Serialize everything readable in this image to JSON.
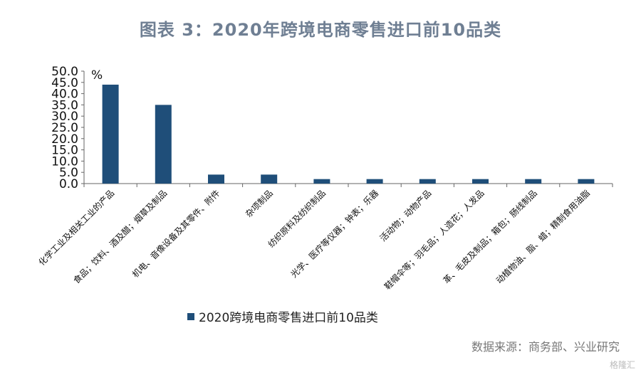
{
  "chart_data": {
    "type": "bar",
    "title": "图表 3：2020年跨境电商零售进口前10品类",
    "ylabel": "%",
    "ylim": [
      0,
      50
    ],
    "yticks": [
      "0.0",
      "5.0",
      "10.0",
      "15.0",
      "20.0",
      "25.0",
      "30.0",
      "35.0",
      "40.0",
      "45.0",
      "50.0"
    ],
    "categories": [
      "化学工业及相关工业的产品",
      "食品；饮料、酒及醋；烟草及制品",
      "机电、音像设备及其零件、附件",
      "杂项制品",
      "纺织原料及纺织制品",
      "光学、医疗等仪器；钟表；乐器",
      "活动物；动物产品",
      "鞋帽伞等；羽毛品；人造花；人发品",
      "革、毛皮及制品；箱包；肠线制品",
      "动植物油、脂、蜡；精制食用油脂"
    ],
    "series": [
      {
        "name": "2020跨境电商零售进口前10品类",
        "values": [
          44.0,
          35.0,
          4.0,
          4.0,
          2.0,
          2.0,
          2.0,
          2.0,
          2.0,
          2.0
        ]
      }
    ],
    "legend_position": "bottom-left",
    "grid": false,
    "bar_color": "#1f4e79"
  },
  "source": "数据来源：商务部、兴业研究",
  "watermark": "格隆汇"
}
